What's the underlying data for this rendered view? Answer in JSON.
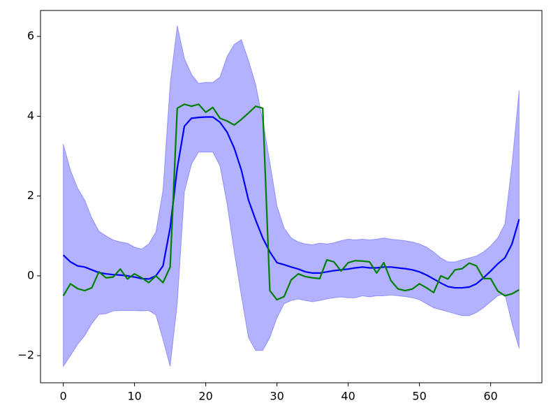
{
  "chart_data": {
    "type": "line",
    "x": [
      0,
      1,
      2,
      3,
      4,
      5,
      6,
      7,
      8,
      9,
      10,
      11,
      12,
      13,
      14,
      15,
      16,
      17,
      18,
      19,
      20,
      21,
      22,
      23,
      24,
      25,
      26,
      27,
      28,
      29,
      30,
      31,
      32,
      33,
      34,
      35,
      36,
      37,
      38,
      39,
      40,
      41,
      42,
      43,
      44,
      45,
      46,
      47,
      48,
      49,
      50,
      51,
      52,
      53,
      54,
      55,
      56,
      57,
      58,
      59,
      60,
      61,
      62,
      63,
      64
    ],
    "band": {
      "color": "#0000ff",
      "alpha": 0.3,
      "upper": [
        3.3,
        2.65,
        2.2,
        1.9,
        1.45,
        1.12,
        1.0,
        0.9,
        0.85,
        0.82,
        0.72,
        0.67,
        0.8,
        1.1,
        2.15,
        4.8,
        6.27,
        5.45,
        5.05,
        4.82,
        4.85,
        4.85,
        4.98,
        5.5,
        5.8,
        5.92,
        5.4,
        4.8,
        3.9,
        2.85,
        1.75,
        1.2,
        0.95,
        0.85,
        0.8,
        0.78,
        0.82,
        0.8,
        0.83,
        0.88,
        0.92,
        0.9,
        0.92,
        0.9,
        0.92,
        0.95,
        0.92,
        0.9,
        0.88,
        0.85,
        0.8,
        0.72,
        0.6,
        0.45,
        0.35,
        0.35,
        0.4,
        0.45,
        0.5,
        0.6,
        0.75,
        0.95,
        1.3,
        2.8,
        4.65
      ],
      "lower": [
        -2.27,
        -2.0,
        -1.72,
        -1.5,
        -1.2,
        -0.97,
        -0.95,
        -0.88,
        -0.87,
        -0.87,
        -0.87,
        -0.88,
        -0.87,
        -0.98,
        -1.6,
        -2.27,
        -0.7,
        2.1,
        2.8,
        3.1,
        3.1,
        3.1,
        2.75,
        1.8,
        0.6,
        -0.5,
        -1.55,
        -1.87,
        -1.87,
        -1.55,
        -1.05,
        -0.7,
        -0.62,
        -0.58,
        -0.62,
        -0.65,
        -0.62,
        -0.58,
        -0.55,
        -0.53,
        -0.55,
        -0.55,
        -0.5,
        -0.53,
        -0.5,
        -0.5,
        -0.48,
        -0.5,
        -0.52,
        -0.55,
        -0.6,
        -0.7,
        -0.8,
        -0.85,
        -0.9,
        -0.95,
        -1.0,
        -1.0,
        -0.92,
        -0.8,
        -0.65,
        -0.5,
        -0.45,
        -1.2,
        -1.82
      ]
    },
    "series": [
      {
        "color": "#0000ff",
        "values": [
          0.52,
          0.35,
          0.25,
          0.22,
          0.15,
          0.08,
          0.05,
          0.03,
          0.02,
          0.0,
          -0.03,
          -0.07,
          -0.08,
          0.0,
          0.25,
          1.2,
          2.7,
          3.75,
          3.95,
          3.97,
          3.98,
          3.98,
          3.85,
          3.6,
          3.2,
          2.65,
          1.9,
          1.4,
          0.95,
          0.6,
          0.33,
          0.28,
          0.22,
          0.17,
          0.1,
          0.07,
          0.07,
          0.1,
          0.13,
          0.15,
          0.17,
          0.2,
          0.22,
          0.2,
          0.2,
          0.22,
          0.22,
          0.2,
          0.18,
          0.15,
          0.1,
          0.02,
          -0.08,
          -0.18,
          -0.27,
          -0.3,
          -0.3,
          -0.28,
          -0.2,
          -0.05,
          0.12,
          0.3,
          0.45,
          0.8,
          1.42
        ]
      },
      {
        "color": "#008000",
        "values": [
          -0.5,
          -0.2,
          -0.32,
          -0.37,
          -0.3,
          0.1,
          -0.05,
          -0.03,
          0.17,
          -0.08,
          0.05,
          -0.05,
          -0.17,
          0.0,
          -0.17,
          0.22,
          4.2,
          4.3,
          4.25,
          4.3,
          4.1,
          4.22,
          3.95,
          3.88,
          3.78,
          3.92,
          4.08,
          4.25,
          4.2,
          -0.37,
          -0.6,
          -0.52,
          -0.1,
          0.05,
          -0.02,
          -0.05,
          -0.07,
          0.4,
          0.35,
          0.12,
          0.33,
          0.38,
          0.37,
          0.35,
          0.07,
          0.33,
          -0.12,
          -0.33,
          -0.37,
          -0.33,
          -0.2,
          -0.3,
          -0.42,
          0.0,
          -0.08,
          0.15,
          0.18,
          0.32,
          0.25,
          -0.07,
          -0.07,
          -0.38,
          -0.5,
          -0.45,
          -0.35
        ]
      }
    ],
    "xlim": [
      -3.2,
      67.2
    ],
    "ylim": [
      -2.68,
      6.65
    ],
    "xticks": [
      0,
      10,
      20,
      30,
      40,
      50,
      60
    ],
    "yticks": [
      {
        "value": -2,
        "label": "−2"
      },
      0,
      2,
      4,
      6
    ]
  }
}
